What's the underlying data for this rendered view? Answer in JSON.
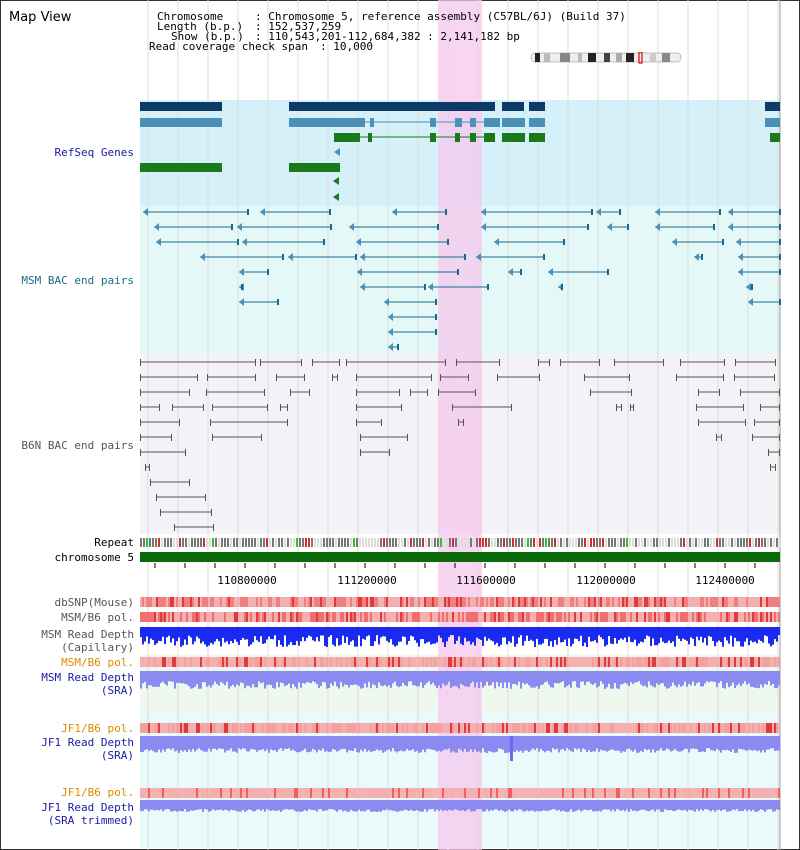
{
  "page_title": "Map View",
  "header": {
    "chromosome_key": "Chromosome",
    "chromosome_val": ": Chromosome 5, reference assembly (C57BL/6J) (Build 37)",
    "length_key": "Length (b.p.)",
    "length_val": ": 152,537,259",
    "show_key": "Show (b.p.)",
    "show_val": ": 110,543,201-112,684,382 : 2,141,182 bp",
    "coverage_key": "Read coverage check span",
    "coverage_val": ": 10,000"
  },
  "tracks": {
    "refseq": "RefSeq Genes",
    "msm_bac": "MSM BAC end pairs",
    "b6n_bac": "B6N BAC end pairs",
    "repeat": "Repeat",
    "chromosome": "chromosome 5",
    "dbsnp": "dbSNP(Mouse)",
    "msm_b6_pol_1": "MSM/B6 pol.",
    "msm_depth_cap_1": "MSM Read Depth",
    "msm_depth_cap_2": "(Capillary)",
    "msm_b6_pol_2": "MSM/B6 pol.",
    "msm_depth_sra_1": "MSM Read Depth",
    "msm_depth_sra_2": "(SRA)",
    "jf1_b6_pol_1": "JF1/B6 pol.",
    "jf1_depth_sra_1": "JF1 Read Depth",
    "jf1_depth_sra_2": "(SRA)",
    "jf1_b6_pol_2": "JF1/B6 pol.",
    "jf1_depth_trim_1": "JF1 Read Depth",
    "jf1_depth_trim_2": "(SRA trimmed)"
  },
  "axis_ticks": [
    "110800000",
    "111200000",
    "111600000",
    "112000000",
    "112400000"
  ],
  "colors": {
    "refseq_dark": "#0d3a66",
    "refseq_light": "#4a90b8",
    "refseq_green": "#1a7a1a",
    "refseq_bg": "#d6f0fa",
    "msm_bac_line": "#1a6a8a",
    "msm_bac_bg": "#e4f8f8",
    "b6n_bac_line": "#555555",
    "b6n_bac_bg": "#f4f4f8",
    "highlight": "#f6c8ee",
    "chromosome_bar": "#0a6a0a",
    "snp_red": "#e23a3a",
    "depth_blue": "#1a2af0",
    "depth_light": "#8a8af0",
    "label_blue": "#1a1aa0",
    "label_orange": "#e08a00",
    "label_teal": "#1a6a8a"
  }
}
